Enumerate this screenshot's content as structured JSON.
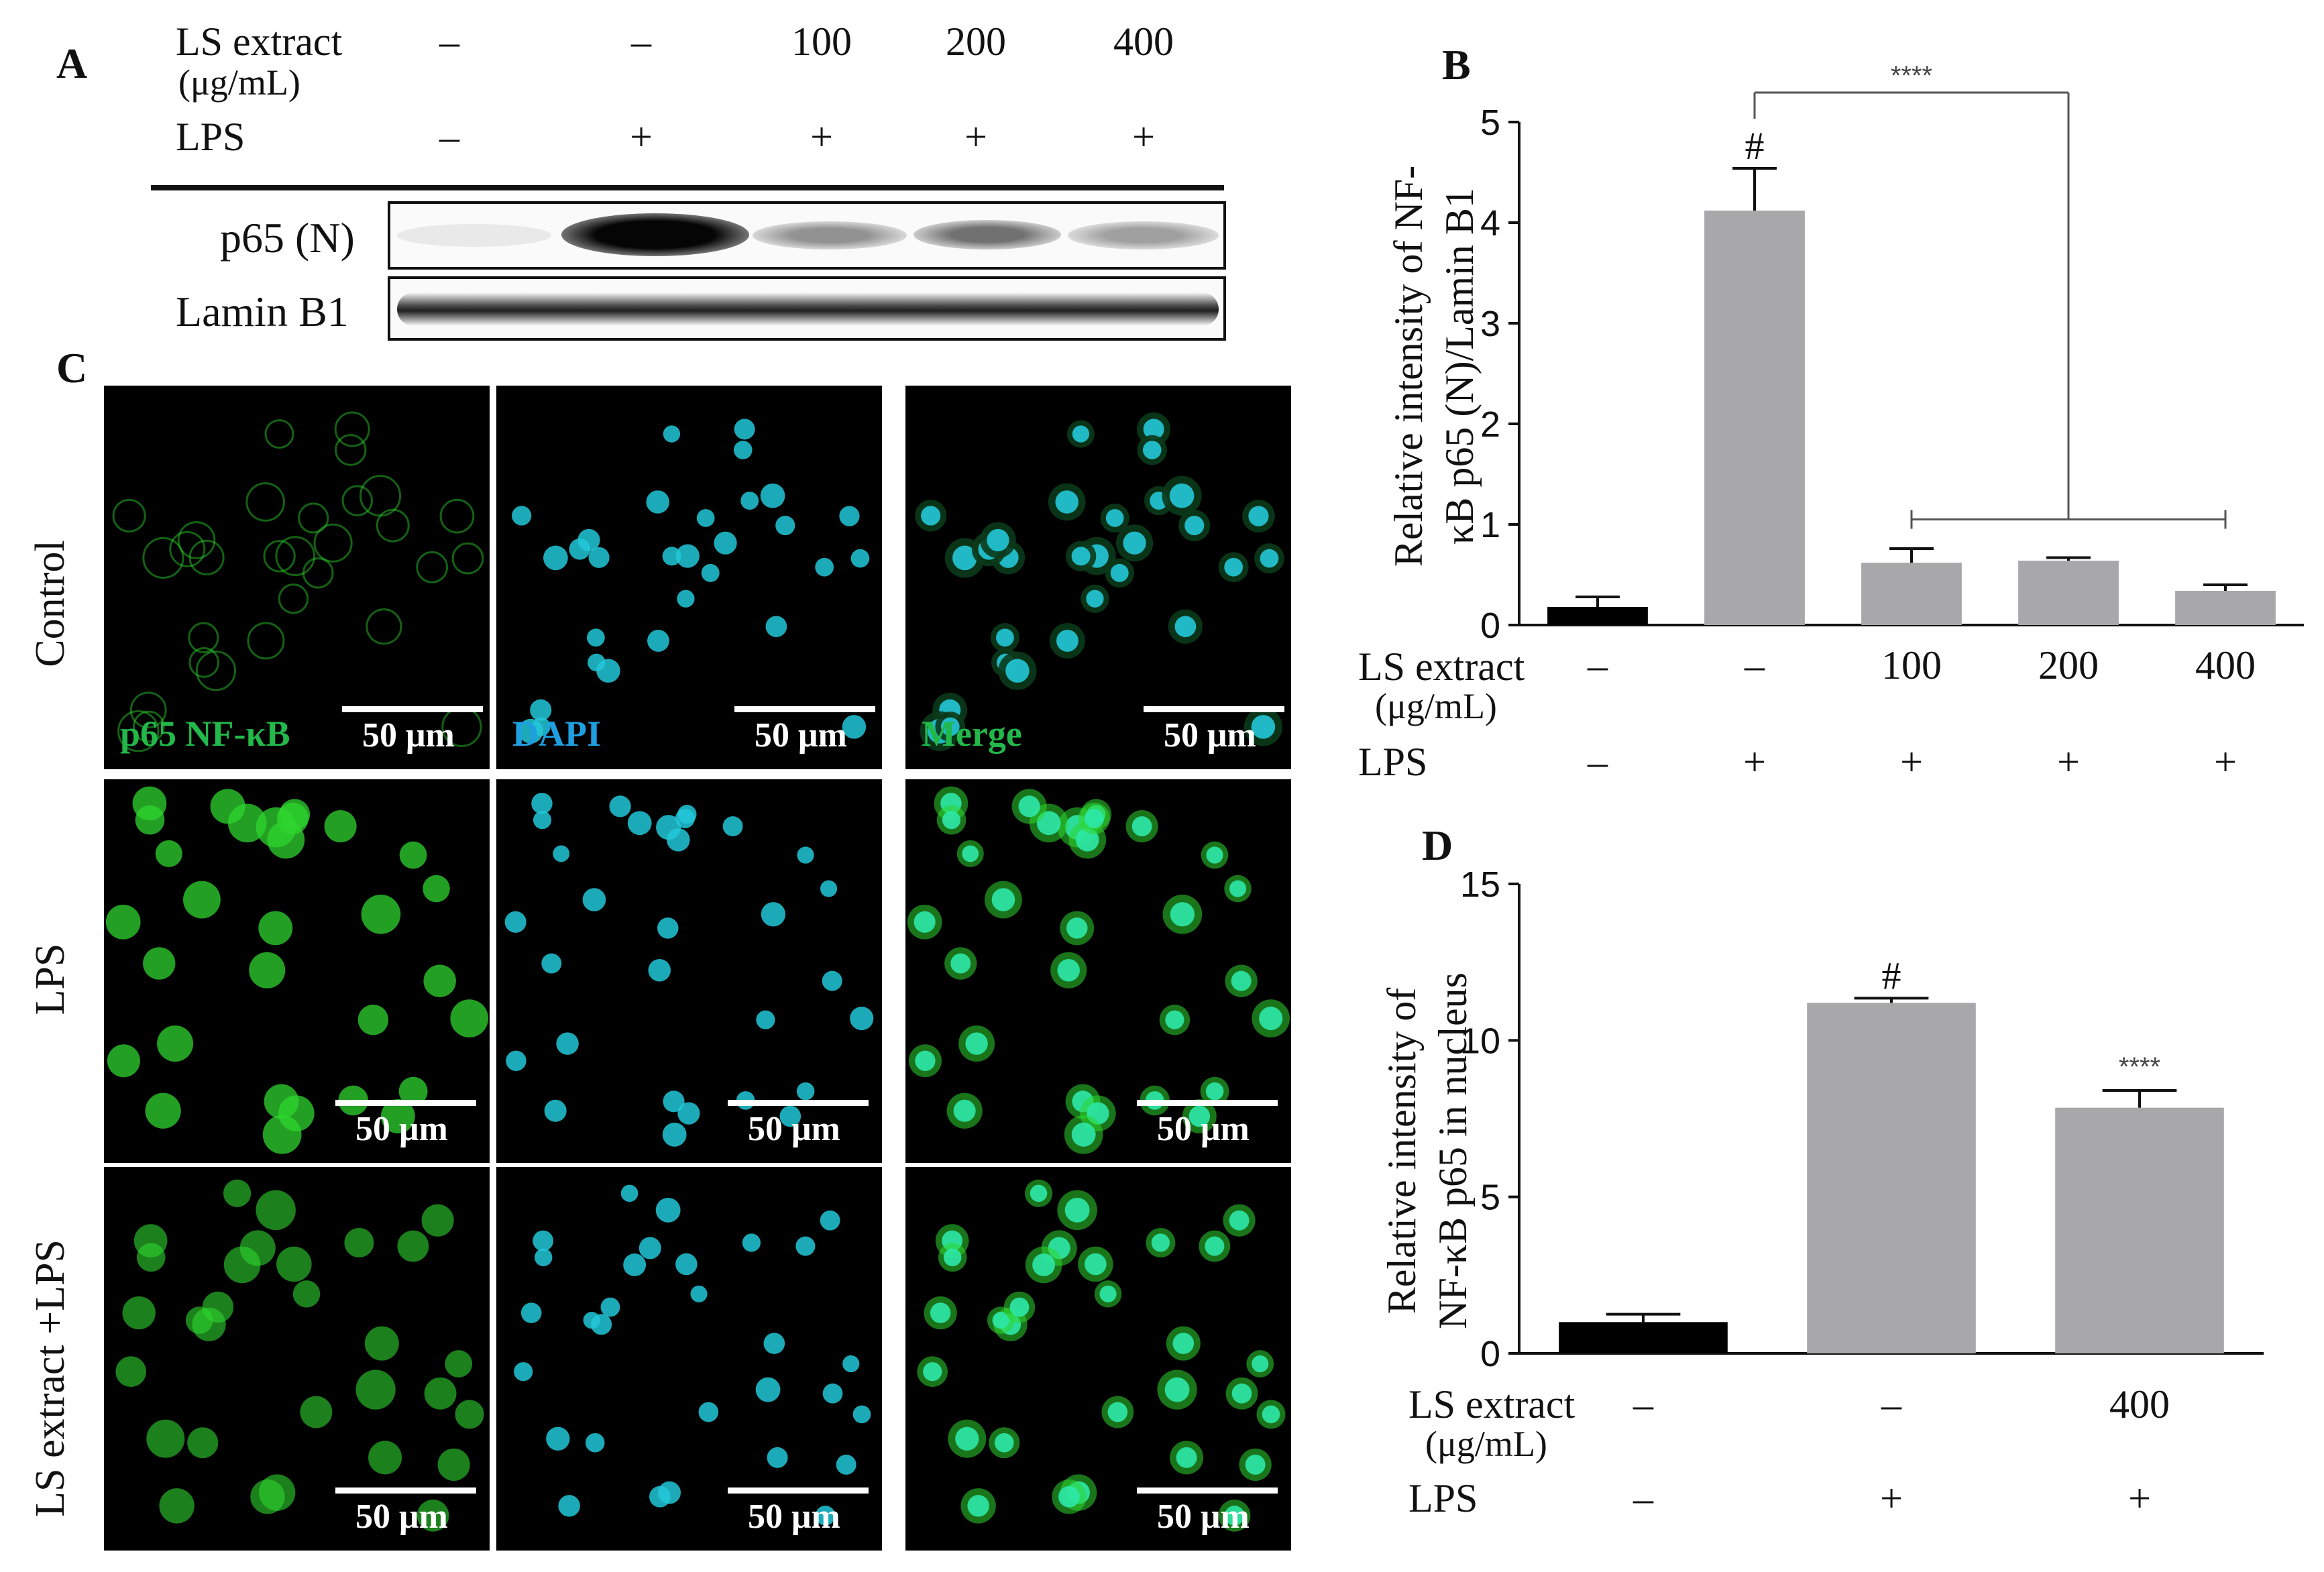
{
  "panels": {
    "A": "A",
    "B": "B",
    "C": "C",
    "D": "D"
  },
  "panel_a": {
    "ls_label": "LS extract",
    "unit_label": "(μg/mL)",
    "lps_label": "LPS",
    "ls_values": [
      "–",
      "–",
      "100",
      "200",
      "400"
    ],
    "lps_values": [
      "–",
      "+",
      "+",
      "+",
      "+"
    ],
    "rows": [
      "p65 (N)",
      "Lamin B1"
    ]
  },
  "panel_c": {
    "row_labels": [
      "Control",
      "LPS",
      "LS extract +LPS"
    ],
    "channel_labels": [
      "p65 NF-κB",
      "DAPI",
      "Merge"
    ],
    "scale_label": "50 μm",
    "colors": {
      "green": "#2fd62f",
      "cyan": "#22c8d8",
      "merge": "#2ee8a8",
      "label_green": "#22b84a",
      "label_blue": "#1f9fe0"
    }
  },
  "chart_data": [
    {
      "type": "bar",
      "panel": "B",
      "ylabel_lines": [
        "Relative intensity of NF-",
        "κB p65 (N)/Lamin B1"
      ],
      "yticks": [
        "0",
        "1",
        "2",
        "3",
        "4",
        "5"
      ],
      "ylim": [
        0,
        5
      ],
      "values": [
        0.18,
        4.12,
        0.62,
        0.64,
        0.34
      ],
      "errors": [
        0.1,
        0.42,
        0.14,
        0.03,
        0.06
      ],
      "colors": [
        "#000000",
        "#a8a8ab",
        "#a8a8ab",
        "#a8a8ab",
        "#a8a8ab"
      ],
      "x_rows": {
        "ls_label": "LS extract",
        "unit_label": "(μg/mL)",
        "lps_label": "LPS",
        "ls_values": [
          "–",
          "–",
          "100",
          "200",
          "400"
        ],
        "lps_values": [
          "–",
          "+",
          "+",
          "+",
          "+"
        ]
      },
      "annotations": {
        "hash": "#",
        "stars": "****"
      }
    },
    {
      "type": "bar",
      "panel": "D",
      "ylabel_lines": [
        "Relative intensity of",
        "NF-κB p65 in nucleus"
      ],
      "yticks": [
        "0",
        "5",
        "10",
        "15"
      ],
      "ylim": [
        0,
        15
      ],
      "values": [
        1.0,
        11.2,
        7.85
      ],
      "errors": [
        0.25,
        0.15,
        0.55
      ],
      "colors": [
        "#000000",
        "#a8a8ab",
        "#a8a8ab"
      ],
      "x_rows": {
        "ls_label": "LS extract",
        "unit_label": "(μg/mL)",
        "lps_label": "LPS",
        "ls_values": [
          "–",
          "–",
          "400"
        ],
        "lps_values": [
          "–",
          "+",
          "+"
        ]
      },
      "annotations": {
        "hash": "#",
        "stars": "****"
      }
    }
  ]
}
